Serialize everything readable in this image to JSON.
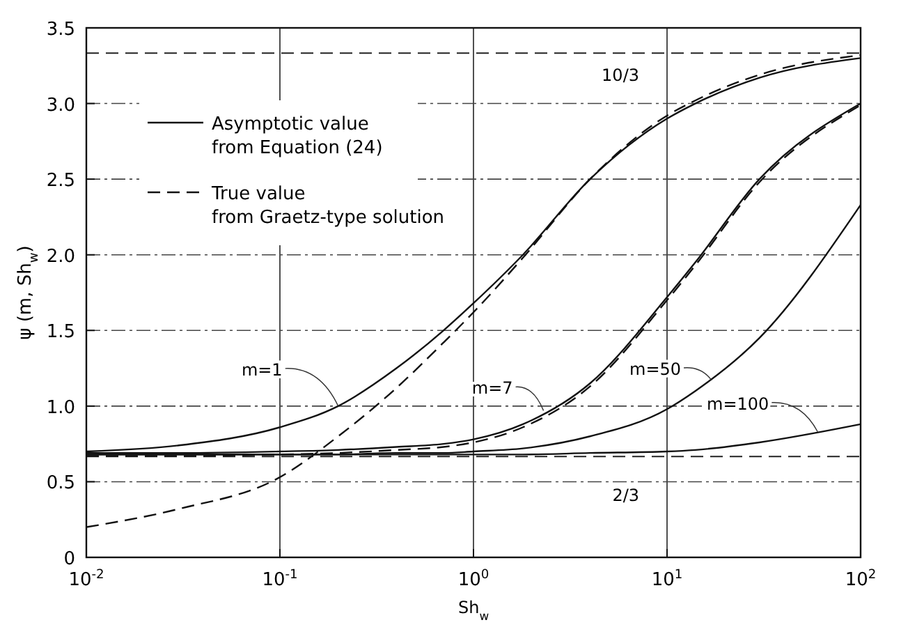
{
  "chart_data": {
    "type": "line",
    "xlabel": "Sh$_{w}$",
    "ylabel": "ψ (m, Sh$_{w}$)",
    "log": "x",
    "grid": true,
    "xlim": [
      0.01,
      100
    ],
    "ylim": [
      0,
      3.5
    ],
    "xticks": [
      {
        "value": 0.01,
        "label": "10$^{-2}$"
      },
      {
        "value": 0.1,
        "label": "10$^{-1}$"
      },
      {
        "value": 1,
        "label": "10$^{0}$"
      },
      {
        "value": 10,
        "label": "10$^{1}$"
      },
      {
        "value": 100,
        "label": "10$^{2}$"
      }
    ],
    "yticks": [
      0,
      {
        "value": 0.5,
        "label": "0.5"
      },
      {
        "value": 1,
        "label": "1.0"
      },
      {
        "value": 1.5,
        "label": "1.5"
      },
      {
        "value": 2,
        "label": "2.0"
      },
      {
        "value": 2.5,
        "label": "2.5"
      },
      {
        "value": 3,
        "label": "3.0"
      },
      {
        "value": 3.5,
        "label": "3.5"
      }
    ],
    "x": [
      0.01,
      0.03,
      0.1,
      0.2,
      0.4,
      0.7,
      1,
      1.8,
      4,
      10,
      14,
      30,
      100
    ],
    "series": [
      {
        "color": "#111111",
        "line_style": "solid",
        "values": [
          0.7,
          0.74,
          0.86,
          1.0,
          1.25,
          1.5,
          1.68,
          2.0,
          2.5,
          2.9,
          3.0,
          3.17,
          3.3
        ]
      },
      {
        "color": "#111111",
        "line_style": "dashed",
        "values": [
          0.2,
          0.32,
          0.53,
          0.8,
          1.12,
          1.42,
          1.62,
          1.98,
          2.5,
          2.92,
          3.02,
          3.19,
          3.32
        ]
      },
      {
        "color": "#111111",
        "line_style": "solid",
        "values": [
          0.69,
          0.69,
          0.7,
          0.71,
          0.73,
          0.75,
          0.78,
          0.88,
          1.15,
          1.72,
          1.95,
          2.5,
          3.0
        ]
      },
      {
        "color": "#111111",
        "line_style": "dashed",
        "values": [
          0.67,
          0.67,
          0.68,
          0.69,
          0.71,
          0.73,
          0.76,
          0.86,
          1.13,
          1.7,
          1.93,
          2.48,
          2.99
        ]
      },
      {
        "color": "#111111",
        "line_style": "solid",
        "values": [
          0.68,
          0.68,
          0.68,
          0.68,
          0.69,
          0.69,
          0.7,
          0.72,
          0.8,
          0.98,
          1.1,
          1.45,
          2.33
        ]
      },
      {
        "color": "#111111",
        "line_style": "solid",
        "values": [
          0.68,
          0.68,
          0.68,
          0.68,
          0.68,
          0.68,
          0.68,
          0.68,
          0.69,
          0.7,
          0.71,
          0.76,
          0.88
        ]
      }
    ],
    "ref_lines": [
      {
        "axis": "y",
        "value": 3.3333,
        "line_style": "dashed"
      },
      {
        "axis": "y",
        "value": 0.6667,
        "line_style": "dashed"
      }
    ],
    "annotations": [
      "Asymptotic value from Equation (24)",
      "True value from Graetz-type solution",
      {
        "text": "m=1",
        "x": 0.2,
        "y": 1.0
      },
      {
        "text": "m=7",
        "x": 2.3,
        "y": 0.97
      },
      {
        "text": "m=50",
        "x": 17,
        "y": 1.17
      },
      {
        "text": "m=100",
        "x": 60,
        "y": 0.83
      },
      {
        "text": "10/3",
        "x": 10,
        "y": 3.3333
      },
      {
        "text": "2/3",
        "x": 10,
        "y": 0.6667
      }
    ]
  }
}
